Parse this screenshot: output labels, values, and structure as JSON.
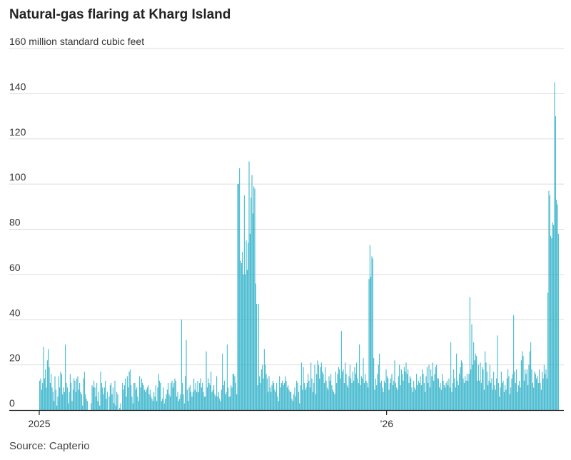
{
  "title": "Natural-gas flaring at Kharg Island",
  "source": "Source: Capterio",
  "chart_data": {
    "type": "bar",
    "ylabel": "",
    "ylim": [
      0,
      160
    ],
    "y_ticks": [
      {
        "value": 160,
        "label": "160 million standard cubic feet"
      },
      {
        "value": 140,
        "label": "140"
      },
      {
        "value": 120,
        "label": "120"
      },
      {
        "value": 100,
        "label": "100"
      },
      {
        "value": 80,
        "label": "80"
      },
      {
        "value": 60,
        "label": "60"
      },
      {
        "value": 40,
        "label": "40"
      },
      {
        "value": 20,
        "label": "20"
      },
      {
        "value": 0,
        "label": "0"
      }
    ],
    "x_ticks": [
      {
        "index": 0,
        "label": "2025"
      },
      {
        "index": 365,
        "label": "’26"
      }
    ],
    "color": "#2ab0c8",
    "grid": true,
    "values": [
      13,
      14,
      9,
      12,
      28,
      14,
      18,
      10,
      22,
      27,
      19,
      12,
      16,
      10,
      8,
      4,
      15,
      9,
      2,
      6,
      15,
      10,
      17,
      16,
      7,
      10,
      8,
      29,
      12,
      10,
      3,
      8,
      16,
      12,
      4,
      9,
      14,
      13,
      8,
      14,
      15,
      9,
      12,
      8,
      7,
      2,
      14,
      17,
      7,
      5,
      4,
      0,
      0,
      0,
      3,
      11,
      10,
      13,
      10,
      6,
      12,
      4,
      8,
      2,
      17,
      12,
      10,
      7,
      10,
      13,
      5,
      8,
      0,
      6,
      11,
      12,
      7,
      10,
      3,
      13,
      2,
      8,
      7,
      0,
      1,
      3,
      0,
      12,
      9,
      11,
      14,
      6,
      15,
      10,
      17,
      18,
      11,
      6,
      3,
      12,
      12,
      9,
      10,
      6,
      4,
      15,
      10,
      14,
      12,
      11,
      9,
      8,
      9,
      10,
      11,
      7,
      9,
      6,
      5,
      4,
      8,
      6,
      11,
      4,
      10,
      16,
      13,
      12,
      4,
      5,
      10,
      3,
      5,
      7,
      9,
      12,
      7,
      6,
      12,
      13,
      10,
      12,
      14,
      13,
      6,
      8,
      4,
      5,
      7,
      40,
      12,
      7,
      3,
      15,
      31,
      9,
      4,
      10,
      11,
      8,
      6,
      8,
      14,
      9,
      12,
      8,
      13,
      8,
      12,
      14,
      10,
      12,
      8,
      6,
      6,
      26,
      10,
      14,
      12,
      11,
      17,
      8,
      9,
      11,
      7,
      6,
      15,
      6,
      8,
      5,
      4,
      9,
      25,
      11,
      13,
      7,
      8,
      29,
      10,
      6,
      6,
      11,
      10,
      16,
      16,
      15,
      12,
      7,
      100,
      100,
      107,
      66,
      65,
      70,
      60,
      95,
      60,
      75,
      62,
      74,
      110,
      78,
      94,
      104,
      87,
      99,
      98,
      56,
      47,
      11,
      47,
      15,
      12,
      18,
      20,
      14,
      27,
      20,
      16,
      14,
      8,
      15,
      10,
      8,
      11,
      13,
      12,
      9,
      8,
      12,
      6,
      4,
      15,
      10,
      12,
      13,
      11,
      12,
      15,
      13,
      10,
      11,
      9,
      8,
      8,
      5,
      4,
      7,
      10,
      6,
      13,
      12,
      8,
      3,
      11,
      21,
      9,
      19,
      12,
      9,
      10,
      12,
      16,
      13,
      10,
      21,
      14,
      8,
      12,
      20,
      7,
      16,
      22,
      20,
      14,
      19,
      21,
      17,
      16,
      12,
      19,
      13,
      10,
      9,
      15,
      13,
      16,
      11,
      9,
      8,
      7,
      17,
      12,
      16,
      19,
      18,
      14,
      35,
      17,
      18,
      12,
      21,
      16,
      11,
      10,
      15,
      20,
      14,
      12,
      17,
      13,
      19,
      16,
      21,
      14,
      12,
      29,
      11,
      15,
      14,
      23,
      12,
      16,
      13,
      12,
      10,
      58,
      73,
      59,
      68,
      67,
      23,
      9,
      14,
      11,
      16,
      20,
      25,
      12,
      13,
      10,
      8,
      13,
      12,
      18,
      15,
      14,
      9,
      12,
      14,
      16,
      11,
      13,
      22,
      12,
      10,
      9,
      15,
      20,
      11,
      18,
      16,
      13,
      19,
      17,
      21,
      16,
      18,
      12,
      15,
      14,
      10,
      8,
      13,
      10,
      9,
      16,
      11,
      13,
      12,
      15,
      11,
      18,
      16,
      12,
      8,
      15,
      19,
      12,
      20,
      10,
      18,
      15,
      21,
      13,
      16,
      19,
      20,
      14,
      14,
      10,
      12,
      9,
      16,
      13,
      11,
      10,
      12,
      13,
      11,
      14,
      10,
      30,
      8,
      12,
      18,
      14,
      10,
      25,
      13,
      11,
      16,
      19,
      22,
      21,
      14,
      12,
      15,
      13,
      16,
      13,
      16,
      50,
      18,
      38,
      20,
      30,
      22,
      25,
      24,
      13,
      20,
      13,
      21,
      12,
      19,
      18,
      9,
      26,
      21,
      17,
      11,
      13,
      20,
      12,
      14,
      9,
      17,
      11,
      9,
      14,
      33,
      12,
      6,
      10,
      17,
      12,
      13,
      8,
      11,
      9,
      14,
      18,
      15,
      7,
      10,
      14,
      16,
      42,
      17,
      12,
      18,
      8,
      11,
      13,
      10,
      22,
      26,
      24,
      13,
      18,
      16,
      18,
      11,
      20,
      26,
      30,
      18,
      12,
      10,
      17,
      16,
      14,
      15,
      12,
      18,
      12,
      9,
      17,
      14,
      20,
      16,
      18,
      14,
      52,
      97,
      95,
      77,
      76,
      83,
      82,
      145,
      130,
      93,
      91,
      78
    ]
  }
}
